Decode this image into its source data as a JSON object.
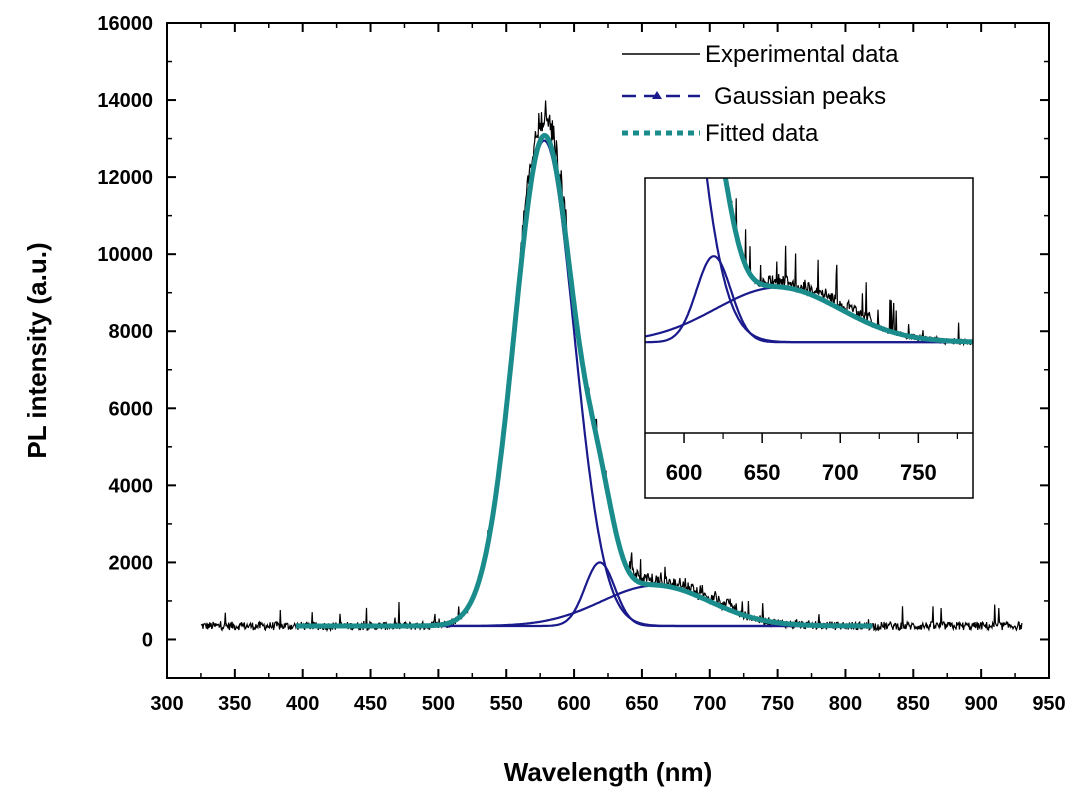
{
  "chart_data": {
    "type": "line",
    "title": "",
    "xlabel": "Wavelength (nm)",
    "ylabel": "PL intensity (a.u.)",
    "xlim": [
      300,
      950
    ],
    "ylim": [
      -1000,
      16000
    ],
    "xticks": [
      300,
      350,
      400,
      450,
      500,
      550,
      600,
      650,
      700,
      750,
      800,
      850,
      900,
      950
    ],
    "yticks": [
      0,
      2000,
      4000,
      6000,
      8000,
      10000,
      12000,
      14000,
      16000
    ],
    "legend_position": "top-right",
    "grid": false,
    "series": [
      {
        "name": "Experimental data",
        "style": "solid-thin",
        "color": "#000000",
        "x_range": [
          325,
          930
        ],
        "baseline": 400
      },
      {
        "name": "Gaussian peaks",
        "style": "dash",
        "color": "#1a1a8c",
        "peaks": [
          {
            "center": 578,
            "amplitude": 12600,
            "sigma": 22
          },
          {
            "center": 619,
            "amplitude": 1650,
            "sigma": 11
          },
          {
            "center": 660,
            "amplitude": 1050,
            "sigma": 40
          }
        ],
        "baseline": 350,
        "x_range": [
          395,
          820
        ]
      },
      {
        "name": "Fitted data",
        "style": "dot-thick",
        "color": "#1a8c8c",
        "x_range": [
          395,
          820
        ],
        "peak_value": 12850,
        "peak_x": 578
      }
    ],
    "inset": {
      "xlim": [
        575,
        785
      ],
      "xticks": [
        600,
        650,
        700,
        750
      ],
      "ylim": [
        -1200,
        3500
      ]
    }
  },
  "colors": {
    "experimental": "#000000",
    "gaussian": "#1a1a8c",
    "fitted": "#1a8c8c"
  }
}
